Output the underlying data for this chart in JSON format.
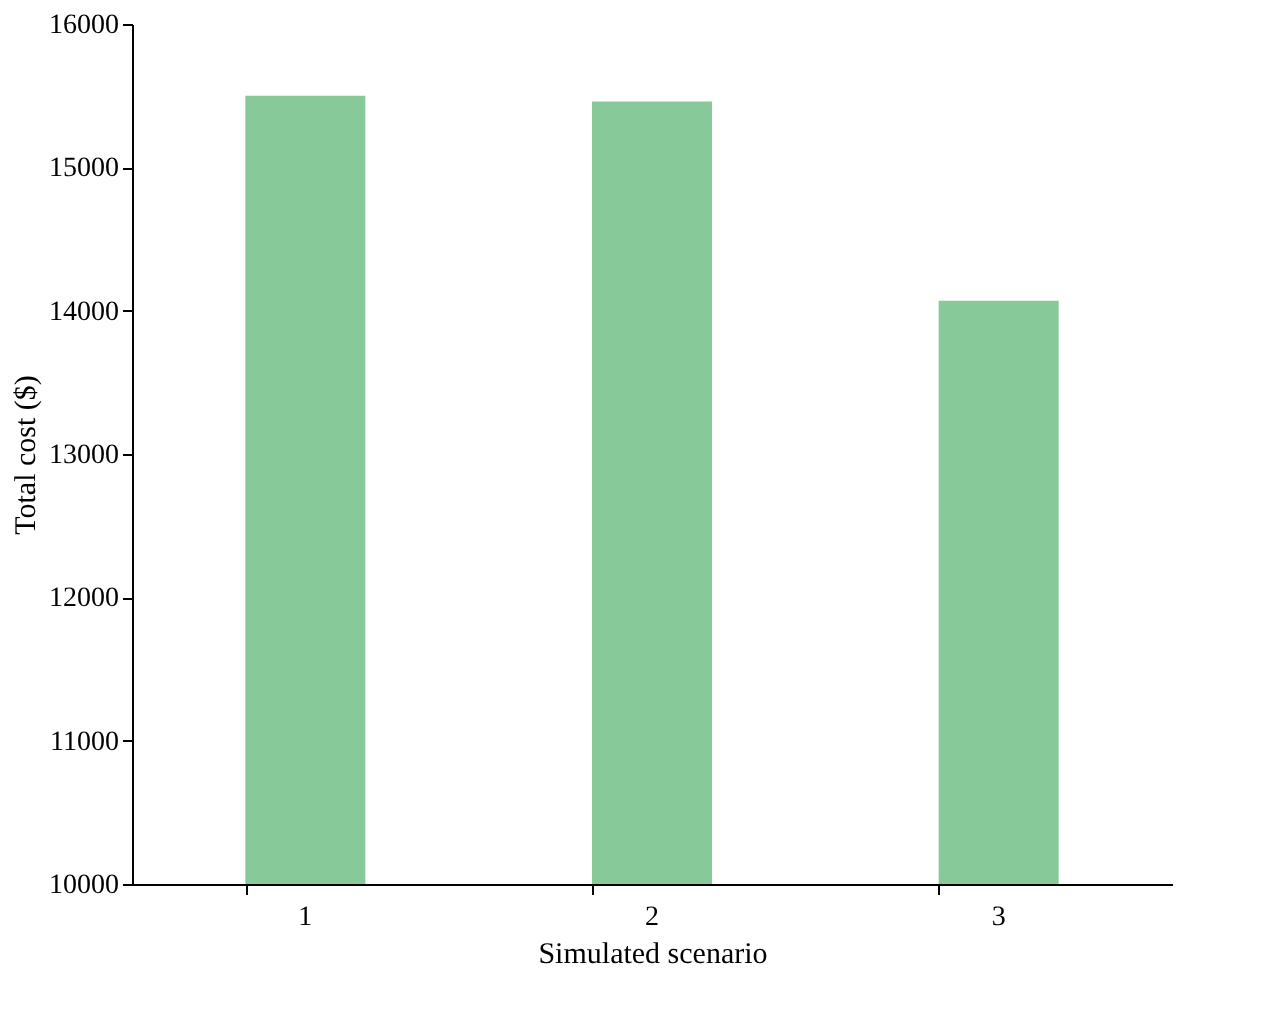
{
  "chart_data": {
    "type": "bar",
    "xlabel": "Simulated scenario",
    "ylabel": "Total cost ($)",
    "categories": [
      "1",
      "2",
      "3"
    ],
    "values": [
      15500,
      15460,
      14070
    ],
    "color": "#88c999",
    "ylim": [
      10000,
      16000
    ],
    "yticks": [
      10000,
      11000,
      12000,
      13000,
      14000,
      15000,
      16000
    ],
    "grid": false
  }
}
